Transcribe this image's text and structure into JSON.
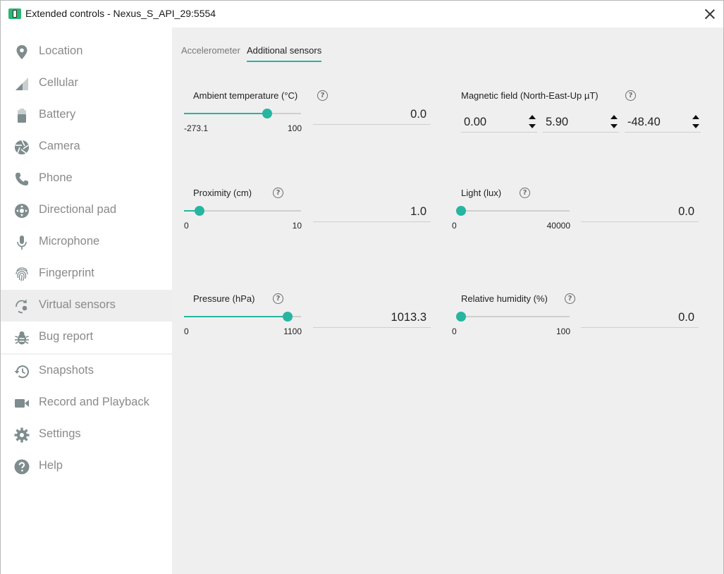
{
  "window": {
    "title": "Extended controls - Nexus_S_API_29:5554"
  },
  "colors": {
    "accent": "#26b5a0",
    "nav_icon": "#7f8c8d",
    "nav_text": "#8a8a8a",
    "content_bg": "#efefef",
    "active_nav_bg": "#eeeeee"
  },
  "sidebar": {
    "items": [
      {
        "label": "Location",
        "icon": "location-pin-icon",
        "active": false
      },
      {
        "label": "Cellular",
        "icon": "cellular-signal-icon",
        "active": false
      },
      {
        "label": "Battery",
        "icon": "battery-icon",
        "active": false
      },
      {
        "label": "Camera",
        "icon": "camera-aperture-icon",
        "active": false
      },
      {
        "label": "Phone",
        "icon": "phone-icon",
        "active": false
      },
      {
        "label": "Directional pad",
        "icon": "dpad-icon",
        "active": false
      },
      {
        "label": "Microphone",
        "icon": "microphone-icon",
        "active": false
      },
      {
        "label": "Fingerprint",
        "icon": "fingerprint-icon",
        "active": false
      },
      {
        "label": "Virtual sensors",
        "icon": "virtual-sensors-icon",
        "active": true
      },
      {
        "label": "Bug report",
        "icon": "bug-icon",
        "active": false
      },
      {
        "label": "Snapshots",
        "icon": "history-icon",
        "active": false
      },
      {
        "label": "Record and Playback",
        "icon": "video-camera-icon",
        "active": false
      },
      {
        "label": "Settings",
        "icon": "gear-icon",
        "active": false
      },
      {
        "label": "Help",
        "icon": "help-circle-icon",
        "active": false
      }
    ]
  },
  "tabs": [
    {
      "label": "Accelerometer",
      "active": false
    },
    {
      "label": "Additional sensors",
      "active": true
    }
  ],
  "sensors": {
    "ambient_temperature": {
      "label": "Ambient temperature (°C)",
      "min": "-273.1",
      "max": "100",
      "value": "0.0",
      "fraction": 0.732
    },
    "magnetic_field": {
      "label": "Magnetic field (North-East-Up µT)",
      "x": "0.00",
      "y": "5.90",
      "z": "-48.40"
    },
    "proximity": {
      "label": "Proximity (cm)",
      "min": "0",
      "max": "10",
      "value": "1.0",
      "fraction": 0.1
    },
    "light": {
      "label": "Light (lux)",
      "min": "0",
      "max": "40000",
      "value": "0.0",
      "fraction": 0.0
    },
    "pressure": {
      "label": "Pressure (hPa)",
      "min": "0",
      "max": "1100",
      "value": "1013.3",
      "fraction": 0.921
    },
    "relative_humidity": {
      "label": "Relative humidity (%)",
      "min": "0",
      "max": "100",
      "value": "0.0",
      "fraction": 0.0
    }
  },
  "help_glyph": "?"
}
